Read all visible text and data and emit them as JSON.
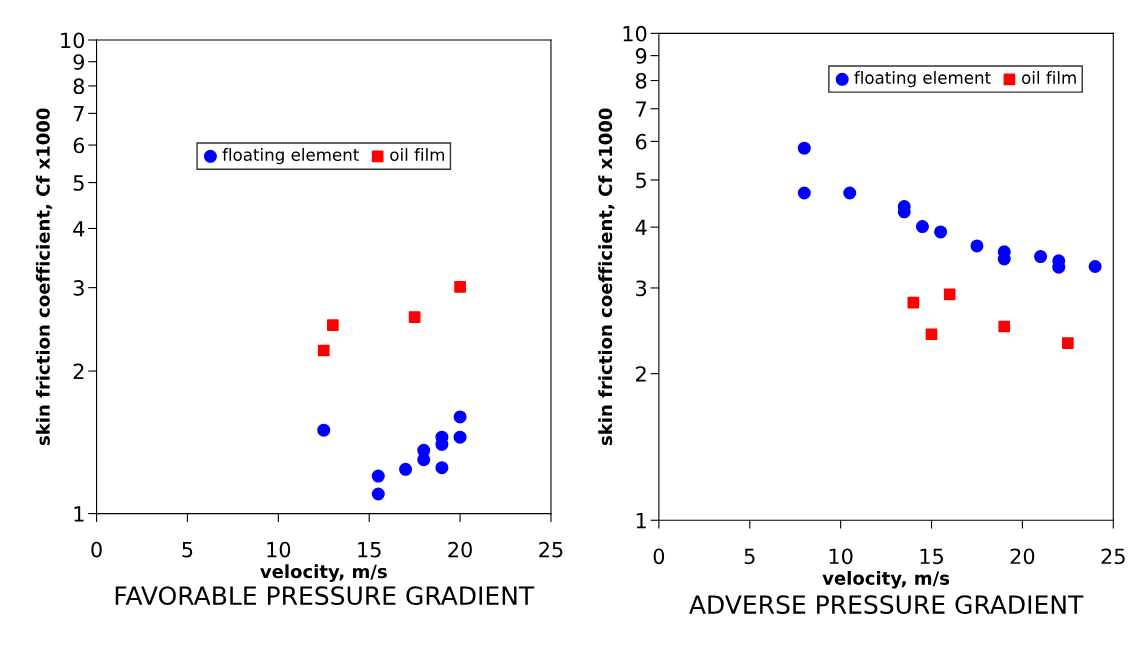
{
  "chart_data": [
    {
      "type": "scatter",
      "title": "FAVORABLE PRESSURE GRADIENT",
      "xlabel": "velocity, m/s",
      "ylabel": "skin friction coefficient, Cf x1000",
      "log": "y",
      "xlim": [
        0,
        25
      ],
      "xticks": [
        0,
        5,
        10,
        15,
        20,
        25
      ],
      "ylim": [
        1,
        10
      ],
      "yticks": [
        1,
        2,
        3,
        4,
        5,
        6,
        7,
        8,
        9,
        10
      ],
      "grid": false,
      "legend": "top",
      "series": [
        {
          "name": "floating element",
          "color": "#0000ff",
          "marker": "circle",
          "x": [
            12.5,
            15.5,
            15.5,
            17,
            18,
            18,
            19,
            19,
            19,
            20,
            20
          ],
          "values": [
            1.5,
            1.2,
            1.1,
            1.24,
            1.36,
            1.3,
            1.45,
            1.4,
            1.25,
            1.6,
            1.45
          ]
        },
        {
          "name": "oil film",
          "color": "#ff0000",
          "marker": "square",
          "x": [
            12.5,
            13,
            17.5,
            20
          ],
          "values": [
            2.21,
            2.5,
            2.6,
            3.01
          ]
        }
      ]
    },
    {
      "type": "scatter",
      "title": "ADVERSE PRESSURE GRADIENT",
      "xlabel": "velocity, m/s",
      "ylabel": "skin friction coefficient, Cf x1000",
      "log": "y",
      "xlim": [
        0,
        25
      ],
      "xticks": [
        0,
        5,
        10,
        15,
        20,
        25
      ],
      "ylim": [
        1,
        10
      ],
      "yticks": [
        1,
        2,
        3,
        4,
        5,
        6,
        7,
        8,
        9,
        10
      ],
      "grid": false,
      "legend": "top right",
      "series": [
        {
          "name": "floating element",
          "color": "#0000ff",
          "marker": "circle",
          "x": [
            8,
            8,
            10.5,
            13.5,
            13.5,
            14.5,
            15.5,
            17.5,
            19,
            19,
            21,
            22,
            22,
            24
          ],
          "values": [
            5.81,
            4.7,
            4.7,
            4.41,
            4.3,
            4.01,
            3.91,
            3.66,
            3.56,
            3.44,
            3.48,
            3.41,
            3.31,
            3.32
          ]
        },
        {
          "name": "oil film",
          "color": "#ff0000",
          "marker": "square",
          "x": [
            14,
            15,
            16,
            19,
            22.5
          ],
          "values": [
            2.8,
            2.41,
            2.91,
            2.5,
            2.31
          ]
        }
      ]
    }
  ]
}
